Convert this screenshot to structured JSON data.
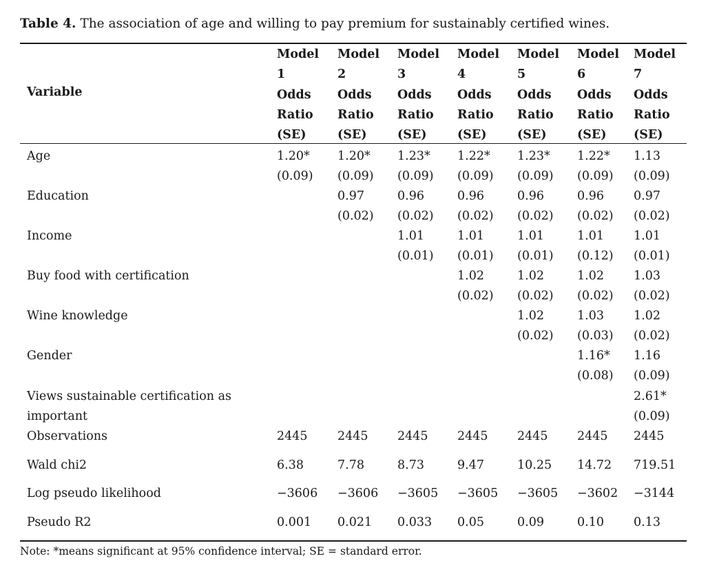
{
  "caption": {
    "label": "Table 4.",
    "text": " The association of age and willing to pay premium for sustainably certified wines."
  },
  "header": {
    "variable": "Variable",
    "models": [
      {
        "line1": "Model",
        "line2": "1"
      },
      {
        "line1": "Model",
        "line2": "2"
      },
      {
        "line1": "Model",
        "line2": "3"
      },
      {
        "line1": "Model",
        "line2": "4"
      },
      {
        "line1": "Model",
        "line2": "5"
      },
      {
        "line1": "Model",
        "line2": "6"
      },
      {
        "line1": "Model",
        "line2": "7"
      }
    ],
    "stat": [
      "Odds",
      "Ratio",
      "(SE)"
    ]
  },
  "rows": [
    {
      "variable": [
        "Age"
      ],
      "values": [
        [
          "1.20*",
          "(0.09)"
        ],
        [
          "1.20*",
          "(0.09)"
        ],
        [
          "1.23*",
          "(0.09)"
        ],
        [
          "1.22*",
          "(0.09)"
        ],
        [
          "1.23*",
          "(0.09)"
        ],
        [
          "1.22*",
          "(0.09)"
        ],
        [
          "1.13",
          "(0.09)"
        ]
      ]
    },
    {
      "variable": [
        "Education"
      ],
      "values": [
        [],
        [
          "0.97",
          "(0.02)"
        ],
        [
          "0.96",
          "(0.02)"
        ],
        [
          "0.96",
          "(0.02)"
        ],
        [
          "0.96",
          "(0.02)"
        ],
        [
          "0.96",
          "(0.02)"
        ],
        [
          "0.97",
          "(0.02)"
        ]
      ]
    },
    {
      "variable": [
        "Income"
      ],
      "values": [
        [],
        [],
        [
          "1.01",
          "(0.01)"
        ],
        [
          "1.01",
          "(0.01)"
        ],
        [
          "1.01",
          "(0.01)"
        ],
        [
          "1.01",
          "(0.12)"
        ],
        [
          "1.01",
          "(0.01)"
        ]
      ]
    },
    {
      "variable": [
        "Buy food with certification"
      ],
      "values": [
        [],
        [],
        [],
        [
          "1.02",
          "(0.02)"
        ],
        [
          "1.02",
          "(0.02)"
        ],
        [
          "1.02",
          "(0.02)"
        ],
        [
          "1.03",
          "(0.02)"
        ]
      ]
    },
    {
      "variable": [
        "Wine knowledge"
      ],
      "values": [
        [],
        [],
        [],
        [],
        [
          "1.02",
          "(0.02)"
        ],
        [
          "1.03",
          "(0.03)"
        ],
        [
          "1.02",
          "(0.02)"
        ]
      ]
    },
    {
      "variable": [
        "Gender"
      ],
      "values": [
        [],
        [],
        [],
        [],
        [],
        [
          "1.16*",
          "(0.08)"
        ],
        [
          "1.16",
          "(0.09)"
        ]
      ]
    },
    {
      "variable": [
        "Views sustainable certification as",
        "important"
      ],
      "values": [
        [],
        [],
        [],
        [],
        [],
        [],
        [
          "2.61*",
          "(0.09)"
        ]
      ]
    },
    {
      "variable": [
        "Observations"
      ],
      "values": [
        [
          "2445"
        ],
        [
          "2445"
        ],
        [
          "2445"
        ],
        [
          "2445"
        ],
        [
          "2445"
        ],
        [
          "2445"
        ],
        [
          "2445"
        ]
      ]
    },
    {
      "variable": [
        "Wald chi2"
      ],
      "values": [
        [
          "6.38"
        ],
        [
          "7.78"
        ],
        [
          "8.73"
        ],
        [
          "9.47"
        ],
        [
          "10.25"
        ],
        [
          "14.72"
        ],
        [
          "719.51"
        ]
      ]
    },
    {
      "variable": [
        "Log pseudo likelihood"
      ],
      "values": [
        [
          "−3606"
        ],
        [
          "−3606"
        ],
        [
          "−3605"
        ],
        [
          "−3605"
        ],
        [
          "−3605"
        ],
        [
          "−3602"
        ],
        [
          "−3144"
        ]
      ]
    },
    {
      "variable": [
        "Pseudo R2"
      ],
      "values": [
        [
          "0.001"
        ],
        [
          "0.021"
        ],
        [
          "0.033"
        ],
        [
          "0.05"
        ],
        [
          "0.09"
        ],
        [
          "0.10"
        ],
        [
          "0.13"
        ]
      ]
    }
  ],
  "note": "Note: *means significant at 95% confidence interval; SE = standard error."
}
